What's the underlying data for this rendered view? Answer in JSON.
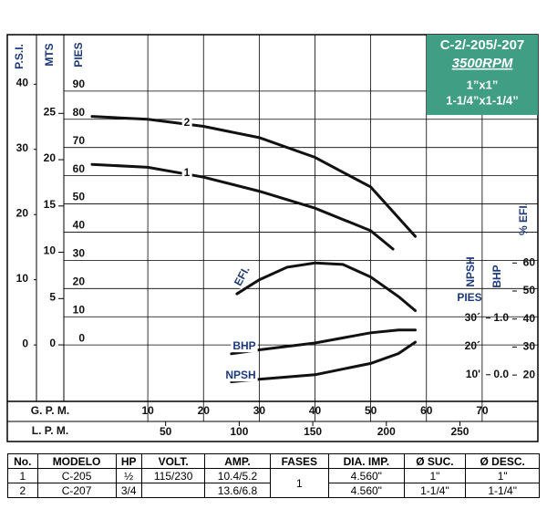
{
  "chart_data": {
    "type": "line",
    "title": "C-2/-205/-207",
    "subtitle": "3500RPM",
    "sizes": [
      "1”x1”",
      "1-1/4”x1-1/4”"
    ],
    "x_label": "G. P. M.",
    "xlim": [
      0,
      80
    ],
    "xticks": [
      10,
      20,
      30,
      40,
      50,
      60,
      70
    ],
    "x2_label": "L. P. M.",
    "x2lim": [
      0,
      303
    ],
    "x2ticks": [
      50,
      100,
      150,
      200,
      250
    ],
    "y_label": "PIES",
    "ylim": [
      -20,
      110
    ],
    "yticks": [
      0,
      10,
      20,
      30,
      40,
      50,
      60,
      70,
      80,
      90
    ],
    "grid": true,
    "psi": {
      "label": "P.S.I.",
      "lim": [
        -8.66,
        47.6
      ],
      "ticks": [
        0,
        10,
        20,
        30,
        40
      ]
    },
    "mts": {
      "label": "MTS",
      "lim": [
        -6.1,
        33.5
      ],
      "ticks": [
        0,
        5,
        10,
        15,
        20,
        25
      ]
    },
    "efi": {
      "label": "% EFI.",
      "lim": [
        10.6,
        141.5
      ],
      "ticks": [
        20,
        30,
        40,
        50,
        60
      ]
    },
    "bhp": {
      "label": "BHP",
      "lim": [
        -0.47,
        6.0
      ],
      "ticks": [
        {
          "value": 0,
          "label": "0.0"
        },
        {
          "value": 1,
          "label": "1.0"
        }
      ]
    },
    "npsh": {
      "label": "NPSH",
      "unit_label": "PIES",
      "lim": [
        0.6,
        130
      ],
      "ticks": [
        {
          "value": 10,
          "label": "10'"
        },
        {
          "value": 20,
          "label": "20´"
        },
        {
          "value": 30,
          "label": "30´"
        }
      ]
    },
    "series": [
      {
        "name": "1",
        "axis": "y",
        "color": "#111111",
        "x": [
          0,
          10,
          20,
          30,
          40,
          50,
          54
        ],
        "values": [
          64,
          63,
          59.5,
          54.5,
          48.5,
          40.5,
          34
        ]
      },
      {
        "name": "2",
        "axis": "y",
        "color": "#111111",
        "x": [
          0,
          10,
          20,
          30,
          40,
          50,
          58
        ],
        "values": [
          81,
          80,
          77.5,
          73.5,
          66.5,
          56,
          38.5
        ]
      },
      {
        "name": "EFI.",
        "axis": "efi",
        "color": "#111111",
        "x": [
          26,
          30,
          35,
          40,
          45,
          50,
          55,
          58
        ],
        "values": [
          49,
          54,
          58.5,
          60,
          59.5,
          55,
          48,
          43
        ]
      },
      {
        "name": "BHP",
        "axis": "bhp",
        "color": "#111111",
        "x": [
          25,
          30,
          40,
          50,
          55,
          58
        ],
        "values": [
          0.37,
          0.44,
          0.56,
          0.74,
          0.79,
          0.79
        ]
      },
      {
        "name": "NPSH",
        "axis": "npsh",
        "color": "#111111",
        "x": [
          25,
          30,
          40,
          50,
          55,
          58
        ],
        "values": [
          7.5,
          8.4,
          10,
          14,
          17.5,
          21.5
        ]
      }
    ]
  },
  "table": {
    "headers": [
      "No.",
      "MODELO",
      "HP",
      "VOLT.",
      "AMP.",
      "FASES",
      "DIA. IMP.",
      "Ø SUC.",
      "Ø DESC."
    ],
    "rows": [
      {
        "no": "1",
        "modelo": "C-205",
        "hp": "½",
        "volt": "115/230",
        "amp": "10.4/5.2",
        "fases": "1",
        "dia": "4.560\"",
        "suc": "1\"",
        "desc": "1\""
      },
      {
        "no": "2",
        "modelo": "C-207",
        "hp": "3/4",
        "amp": "13.6/6.8",
        "dia": "4.560\"",
        "suc": "1-1/4\"",
        "desc": "1-1/4\""
      }
    ]
  }
}
